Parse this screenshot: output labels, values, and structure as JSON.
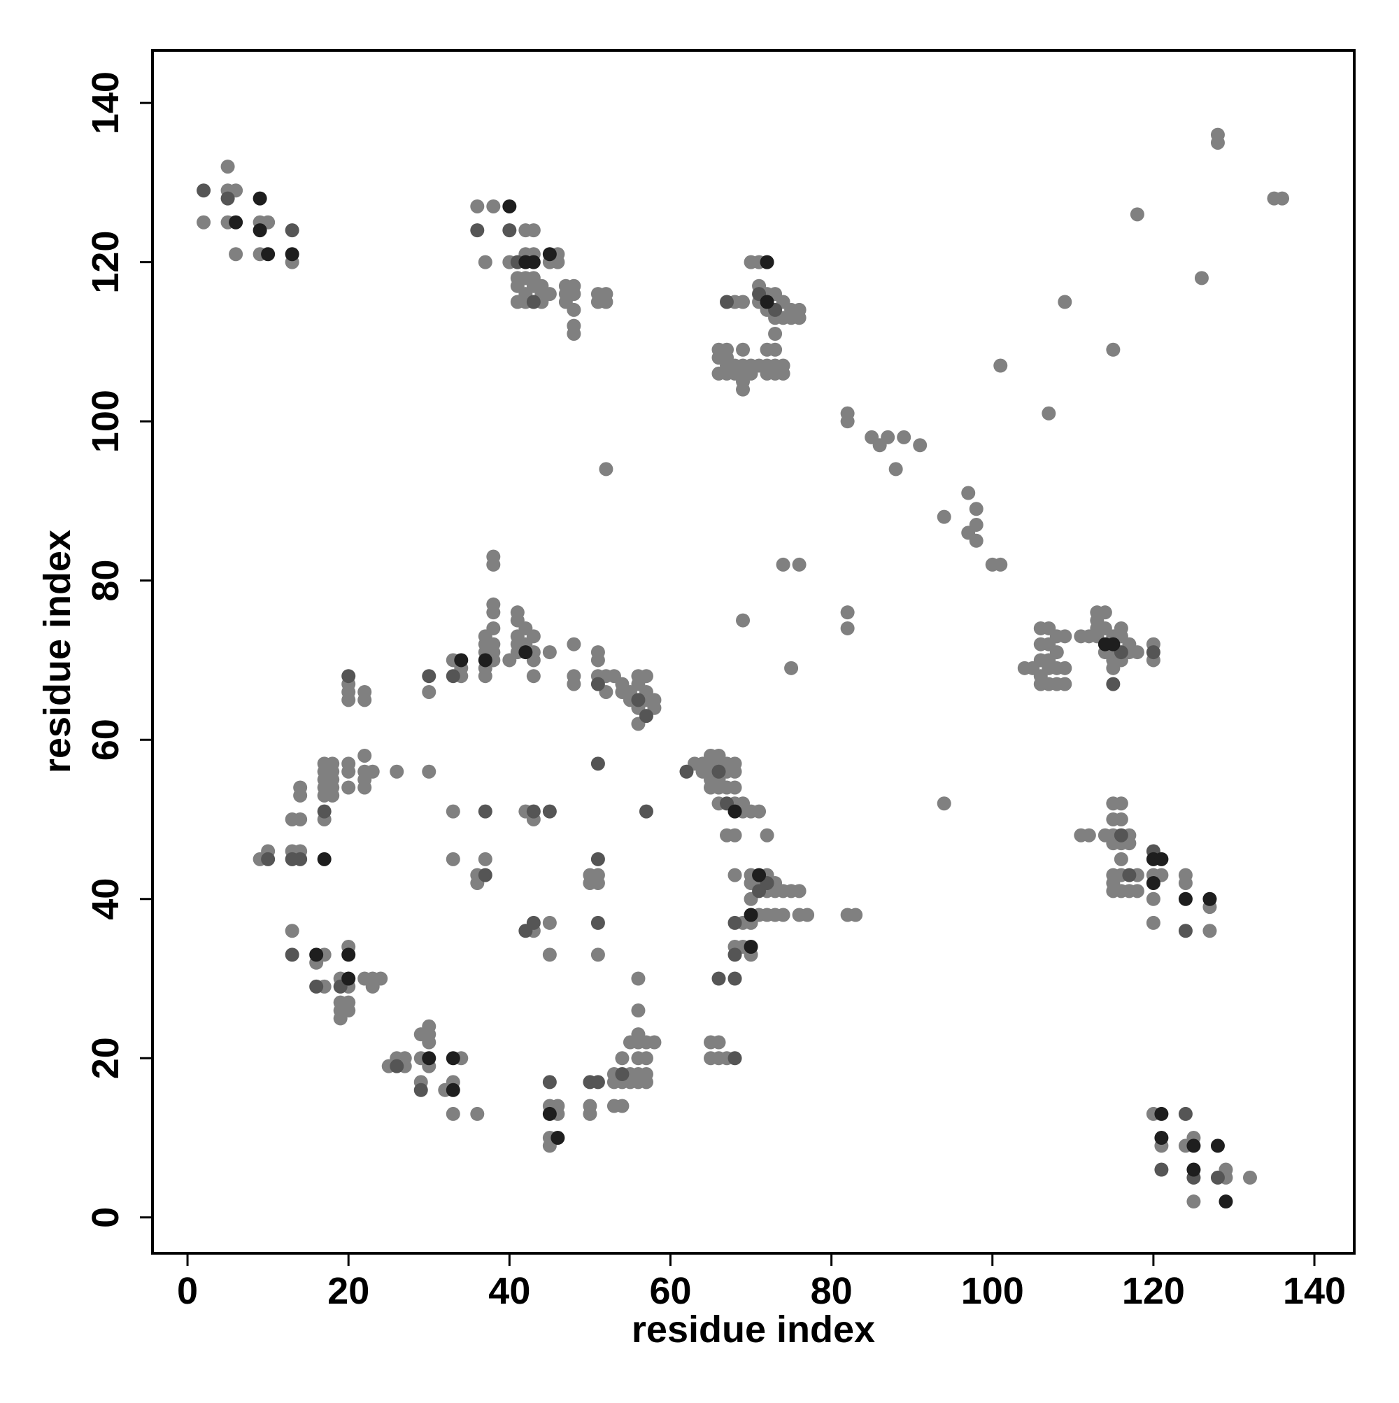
{
  "chart_data": {
    "type": "scatter",
    "xlabel": "residue index",
    "ylabel": "residue index",
    "xlim": [
      -4.35,
      144.95
    ],
    "ylim": [
      -4.5,
      146.6
    ],
    "xticks": [
      0,
      20,
      40,
      60,
      80,
      100,
      120,
      140
    ],
    "yticks": [
      0,
      20,
      40,
      60,
      80,
      100,
      120,
      140
    ],
    "series": [
      {
        "color": "#808080",
        "x": [
          2,
          5,
          5,
          5,
          6,
          6,
          9,
          9,
          10,
          13,
          36,
          37,
          38,
          40,
          41,
          41,
          41,
          42,
          42,
          42,
          42,
          42,
          43,
          43,
          43,
          43,
          44,
          44,
          44,
          45,
          45,
          46,
          46,
          47,
          47,
          47,
          48,
          48,
          48,
          48,
          48,
          51,
          51,
          52,
          52,
          52,
          68,
          69,
          70,
          71,
          71,
          71,
          72,
          72,
          73,
          73,
          73,
          74,
          74,
          75,
          75,
          76,
          76,
          66,
          66,
          66,
          67,
          67,
          67,
          67,
          68,
          68,
          69,
          69,
          69,
          69,
          69,
          70,
          70,
          71,
          72,
          72,
          72,
          73,
          73,
          73,
          74,
          74,
          82,
          82,
          85,
          86,
          87,
          88,
          89,
          91,
          94,
          97,
          97,
          98,
          98,
          98,
          100,
          101,
          101,
          107,
          109,
          115,
          118,
          126,
          128,
          128,
          135,
          136,
          74,
          76,
          69,
          75,
          82,
          82,
          94,
          82,
          83,
          104,
          105,
          106,
          106,
          106,
          106,
          106,
          107,
          107,
          107,
          107,
          107,
          108,
          108,
          108,
          108,
          109,
          109,
          109,
          111,
          112,
          113,
          113,
          113,
          113,
          114,
          114,
          114,
          115,
          115,
          115,
          115,
          116,
          116,
          116,
          117,
          117,
          118,
          120,
          120,
          111,
          112,
          114,
          115,
          115,
          115,
          115,
          115,
          115,
          115,
          116,
          116,
          116,
          116,
          116,
          116,
          117,
          117,
          117,
          118,
          118,
          120,
          120,
          120,
          121,
          124,
          124,
          127,
          127,
          120,
          121,
          124,
          125,
          125,
          129,
          129,
          132,
          38,
          38,
          37,
          37,
          37,
          37,
          37,
          38,
          38,
          38,
          38,
          38,
          38,
          40,
          41,
          41,
          41,
          41,
          41,
          42,
          42,
          43,
          43,
          43,
          43,
          45,
          48,
          48,
          48,
          51,
          51,
          51,
          52,
          52,
          53,
          54,
          54,
          55,
          55,
          56,
          56,
          56,
          56,
          57,
          57,
          57,
          58,
          58,
          30,
          33,
          34,
          34,
          20,
          20,
          20,
          22,
          22,
          17,
          17,
          17,
          17,
          17,
          18,
          18,
          18,
          18,
          18,
          20,
          20,
          20,
          22,
          22,
          22,
          22,
          23,
          26,
          30,
          14,
          14,
          13,
          14,
          17,
          9,
          10,
          13,
          14,
          33,
          42,
          43,
          33,
          36,
          36,
          37,
          50,
          50,
          51,
          51,
          43,
          45,
          45,
          51,
          63,
          64,
          64,
          65,
          65,
          65,
          65,
          65,
          66,
          66,
          66,
          66,
          66,
          67,
          67,
          67,
          68,
          68,
          68,
          68,
          68,
          69,
          69,
          67,
          70,
          71,
          72,
          68,
          70,
          70,
          70,
          70,
          71,
          71,
          72,
          72,
          72,
          73,
          73,
          73,
          74,
          74,
          75,
          76,
          76,
          77,
          68,
          69,
          69,
          70,
          13,
          16,
          17,
          17,
          19,
          19,
          19,
          19,
          20,
          20,
          20,
          20,
          22,
          23,
          23,
          24,
          25,
          26,
          27,
          27,
          29,
          29,
          29,
          30,
          30,
          30,
          30,
          32,
          33,
          33,
          34,
          36,
          45,
          45,
          45,
          46,
          46,
          50,
          50,
          53,
          53,
          53,
          54,
          54,
          54,
          55,
          55,
          55,
          56,
          56,
          56,
          56,
          56,
          56,
          56,
          57,
          57,
          57,
          57,
          58,
          65,
          65,
          66,
          66,
          67
        ],
        "y": [
          125,
          132,
          129,
          125,
          129,
          121,
          125,
          121,
          125,
          120,
          127,
          120,
          127,
          120,
          118,
          117,
          115,
          124,
          121,
          118,
          116,
          115,
          124,
          121,
          118,
          117,
          117,
          116,
          115,
          120,
          116,
          121,
          120,
          117,
          116,
          115,
          117,
          116,
          114,
          112,
          111,
          116,
          115,
          116,
          115,
          94,
          115,
          115,
          120,
          120,
          117,
          115,
          116,
          114,
          116,
          113,
          111,
          115,
          113,
          114,
          113,
          114,
          113,
          109,
          108,
          106,
          109,
          108,
          107,
          106,
          107,
          106,
          109,
          107,
          106,
          105,
          104,
          107,
          106,
          107,
          109,
          107,
          106,
          109,
          107,
          106,
          107,
          106,
          101,
          100,
          98,
          97,
          98,
          94,
          98,
          97,
          88,
          91,
          86,
          89,
          87,
          85,
          82,
          82,
          107,
          101,
          115,
          109,
          126,
          118,
          136,
          135,
          128,
          128,
          82,
          82,
          75,
          69,
          76,
          74,
          52,
          38,
          38,
          69,
          69,
          74,
          72,
          70,
          68,
          67,
          74,
          72,
          70,
          69,
          67,
          73,
          71,
          69,
          67,
          73,
          69,
          67,
          73,
          73,
          76,
          75,
          74,
          73,
          76,
          74,
          71,
          73,
          71,
          70,
          69,
          74,
          73,
          70,
          72,
          71,
          71,
          72,
          70,
          48,
          48,
          48,
          52,
          50,
          48,
          47,
          43,
          42,
          41,
          52,
          50,
          47,
          45,
          43,
          41,
          48,
          47,
          41,
          43,
          41,
          43,
          40,
          37,
          43,
          43,
          42,
          39,
          36,
          13,
          9,
          9,
          10,
          2,
          6,
          5,
          5,
          83,
          82,
          73,
          72,
          71,
          69,
          68,
          77,
          76,
          74,
          72,
          71,
          70,
          70,
          76,
          75,
          73,
          72,
          71,
          74,
          72,
          73,
          71,
          70,
          68,
          71,
          72,
          68,
          67,
          71,
          70,
          68,
          68,
          66,
          68,
          67,
          66,
          66,
          65,
          68,
          67,
          64,
          62,
          68,
          66,
          65,
          65,
          64,
          66,
          70,
          69,
          68,
          67,
          66,
          65,
          66,
          65,
          57,
          56,
          55,
          54,
          53,
          57,
          56,
          55,
          54,
          53,
          57,
          56,
          54,
          58,
          56,
          55,
          54,
          56,
          56,
          56,
          54,
          53,
          50,
          50,
          50,
          45,
          46,
          46,
          46,
          51,
          51,
          50,
          45,
          43,
          42,
          45,
          43,
          42,
          43,
          42,
          36,
          37,
          33,
          33,
          57,
          57,
          56,
          58,
          57,
          56,
          55,
          54,
          58,
          57,
          55,
          54,
          52,
          57,
          56,
          54,
          57,
          56,
          54,
          52,
          48,
          52,
          51,
          48,
          51,
          51,
          48,
          43,
          43,
          42,
          40,
          37,
          42,
          38,
          43,
          41,
          38,
          42,
          41,
          38,
          41,
          38,
          41,
          41,
          38,
          38,
          34,
          37,
          34,
          33,
          36,
          32,
          33,
          29,
          30,
          27,
          26,
          25,
          34,
          29,
          27,
          26,
          30,
          30,
          29,
          30,
          19,
          20,
          20,
          19,
          23,
          20,
          17,
          24,
          23,
          22,
          19,
          16,
          17,
          13,
          20,
          13,
          14,
          10,
          9,
          14,
          13,
          14,
          13,
          18,
          17,
          14,
          20,
          17,
          14,
          22,
          18,
          17,
          22,
          20,
          18,
          17,
          30,
          26,
          23,
          22,
          20,
          18,
          17,
          22,
          22,
          20,
          22,
          20,
          20
        ]
      },
      {
        "color": "#555555",
        "x": [
          2,
          5,
          13,
          36,
          40,
          41,
          43,
          67,
          71,
          73,
          33,
          30,
          20,
          17,
          14,
          10,
          13,
          51,
          56,
          57,
          66,
          67,
          71,
          72,
          68,
          68,
          66,
          68,
          68,
          45,
          50,
          51,
          54,
          43,
          51,
          51,
          37,
          43,
          45,
          57,
          51,
          37,
          42,
          115,
          116,
          120,
          116,
          120,
          117,
          124,
          121,
          124,
          128,
          125,
          19,
          16,
          29,
          26,
          13,
          62
        ],
        "y": [
          129,
          128,
          124,
          124,
          124,
          120,
          115,
          115,
          116,
          114,
          68,
          68,
          68,
          51,
          45,
          45,
          45,
          67,
          65,
          63,
          56,
          52,
          41,
          42,
          37,
          33,
          30,
          30,
          20,
          17,
          17,
          17,
          18,
          37,
          37,
          45,
          51,
          51,
          51,
          51,
          57,
          43,
          36,
          67,
          71,
          71,
          48,
          46,
          43,
          36,
          6,
          13,
          5,
          5,
          29,
          29,
          16,
          19,
          33,
          56
        ]
      },
      {
        "color": "#1e1e1e",
        "x": [
          40,
          43,
          45,
          42,
          72,
          72,
          34,
          37,
          42,
          120,
          121,
          120,
          124,
          127,
          121,
          121,
          125,
          128,
          125,
          129,
          20,
          20,
          70,
          71,
          70,
          30,
          33,
          45,
          46,
          33,
          17,
          16,
          9,
          6,
          10,
          114,
          115,
          68,
          9,
          13
        ],
        "y": [
          127,
          120,
          121,
          120,
          120,
          115,
          70,
          70,
          71,
          45,
          45,
          42,
          40,
          40,
          13,
          10,
          6,
          9,
          9,
          2,
          33,
          30,
          34,
          43,
          38,
          20,
          16,
          13,
          10,
          20,
          45,
          33,
          124,
          125,
          121,
          72,
          72,
          51,
          128,
          121
        ]
      }
    ]
  }
}
